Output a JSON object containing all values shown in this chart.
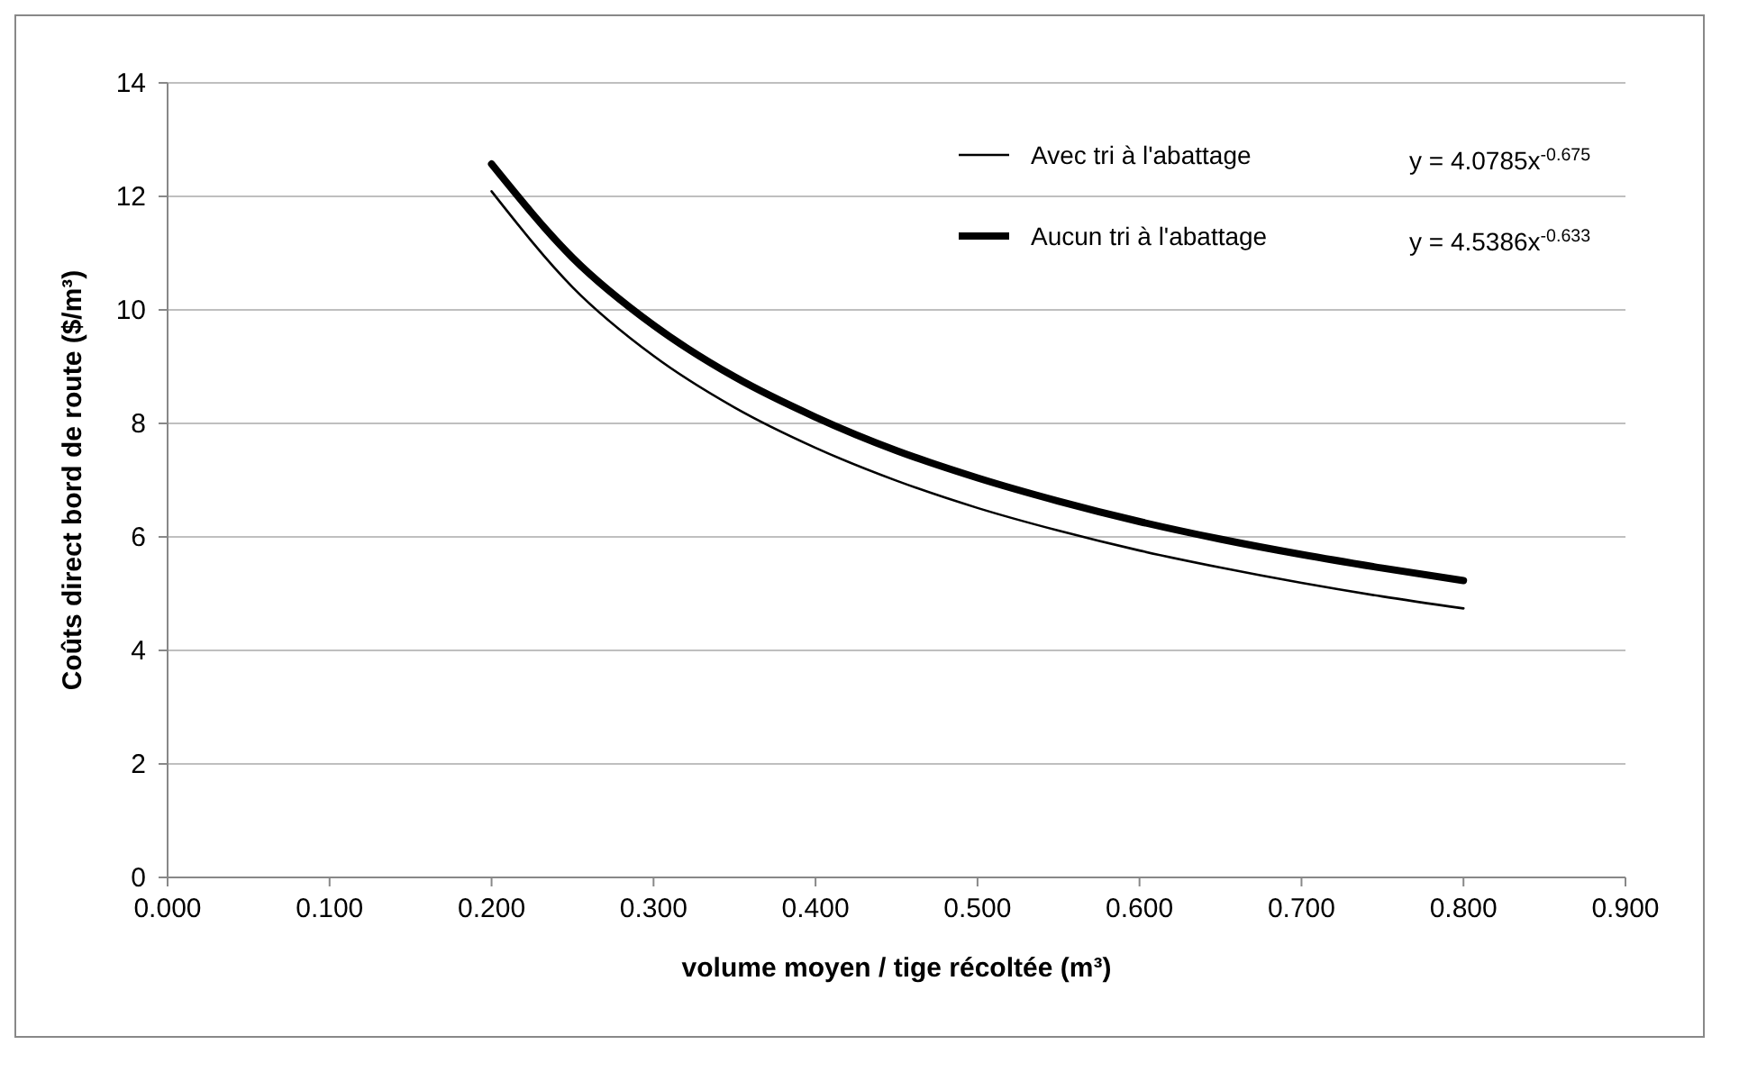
{
  "chart_data": {
    "type": "line",
    "xlabel": "volume moyen / tige récoltée (m³)",
    "ylabel": "Coûts direct bord de route ($/m³)",
    "x": [
      0.2,
      0.25,
      0.3,
      0.35,
      0.4,
      0.45,
      0.5,
      0.55,
      0.6,
      0.65,
      0.7,
      0.75,
      0.8
    ],
    "series": [
      {
        "name": "Avec  tri à l'abattage",
        "color": "#000000",
        "values": [
          12.09,
          10.4,
          9.19,
          8.28,
          7.57,
          6.99,
          6.51,
          6.11,
          5.76,
          5.46,
          5.19,
          4.95,
          4.74
        ]
      },
      {
        "name": "Aucun tri à l'abattage",
        "color": "#000000",
        "values": [
          12.57,
          10.92,
          9.73,
          8.82,
          8.11,
          7.52,
          7.04,
          6.63,
          6.27,
          5.96,
          5.69,
          5.45,
          5.23
        ]
      }
    ],
    "annotations": [
      "y = 4.0785x$^{-0.675}$",
      "y = 4.5386x$^{-0.633}$"
    ],
    "xlim": [
      0,
      0.9
    ],
    "xticks": [
      {
        "value": 0,
        "label": "0.000"
      },
      {
        "value": 0.1,
        "label": "0.100"
      },
      {
        "value": 0.2,
        "label": "0.200"
      },
      {
        "value": 0.3,
        "label": "0.300"
      },
      {
        "value": 0.4,
        "label": "0.400"
      },
      {
        "value": 0.5,
        "label": "0.500"
      },
      {
        "value": 0.6,
        "label": "0.600"
      },
      {
        "value": 0.7,
        "label": "0.700"
      },
      {
        "value": 0.8,
        "label": "0.800"
      },
      {
        "value": 0.9,
        "label": "0.900"
      }
    ],
    "ylim": [
      0,
      14
    ],
    "yticks": [
      0,
      2,
      4,
      6,
      8,
      10,
      12,
      14
    ],
    "grid": "y",
    "legend": "top right",
    "marker": "none",
    "line_style": "solid"
  }
}
